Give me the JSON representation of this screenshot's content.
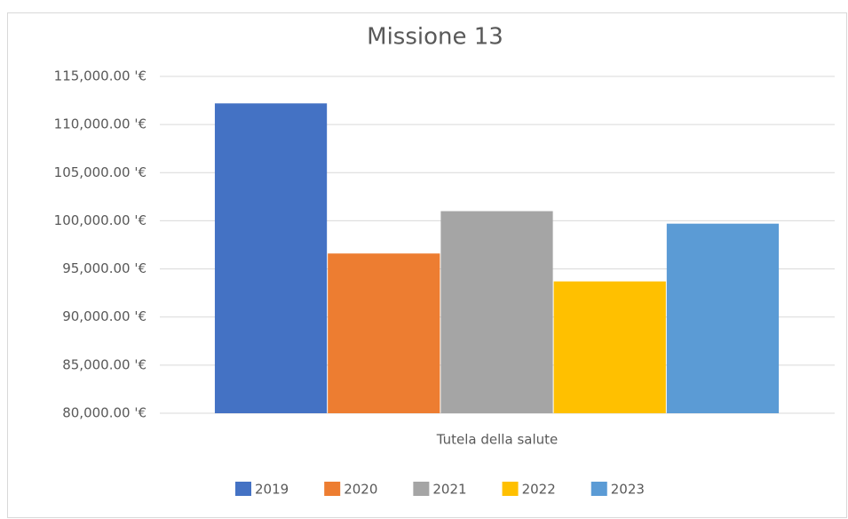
{
  "chart_data": {
    "type": "bar",
    "title": "Missione 13",
    "categories": [
      "Tutela della salute"
    ],
    "series": [
      {
        "name": "2019",
        "color": "#4472c4",
        "values": [
          112200
        ]
      },
      {
        "name": "2020",
        "color": "#ed7d31",
        "values": [
          96600
        ]
      },
      {
        "name": "2021",
        "color": "#a5a5a5",
        "values": [
          101000
        ]
      },
      {
        "name": "2022",
        "color": "#ffc000",
        "values": [
          93700
        ]
      },
      {
        "name": "2023",
        "color": "#5b9bd5",
        "values": [
          99700
        ]
      }
    ],
    "ylim": [
      80000,
      115000
    ],
    "yticks": [
      {
        "value": 80000,
        "label": "80,000.00 '€"
      },
      {
        "value": 85000,
        "label": "85,000.00 '€"
      },
      {
        "value": 90000,
        "label": "90,000.00 '€"
      },
      {
        "value": 95000,
        "label": "95,000.00 '€"
      },
      {
        "value": 100000,
        "label": "100,000.00 '€"
      },
      {
        "value": 105000,
        "label": "105,000.00 '€"
      },
      {
        "value": 110000,
        "label": "110,000.00 '€"
      },
      {
        "value": 115000,
        "label": "115,000.00 '€"
      }
    ],
    "grid": true,
    "legend": "bottom"
  }
}
